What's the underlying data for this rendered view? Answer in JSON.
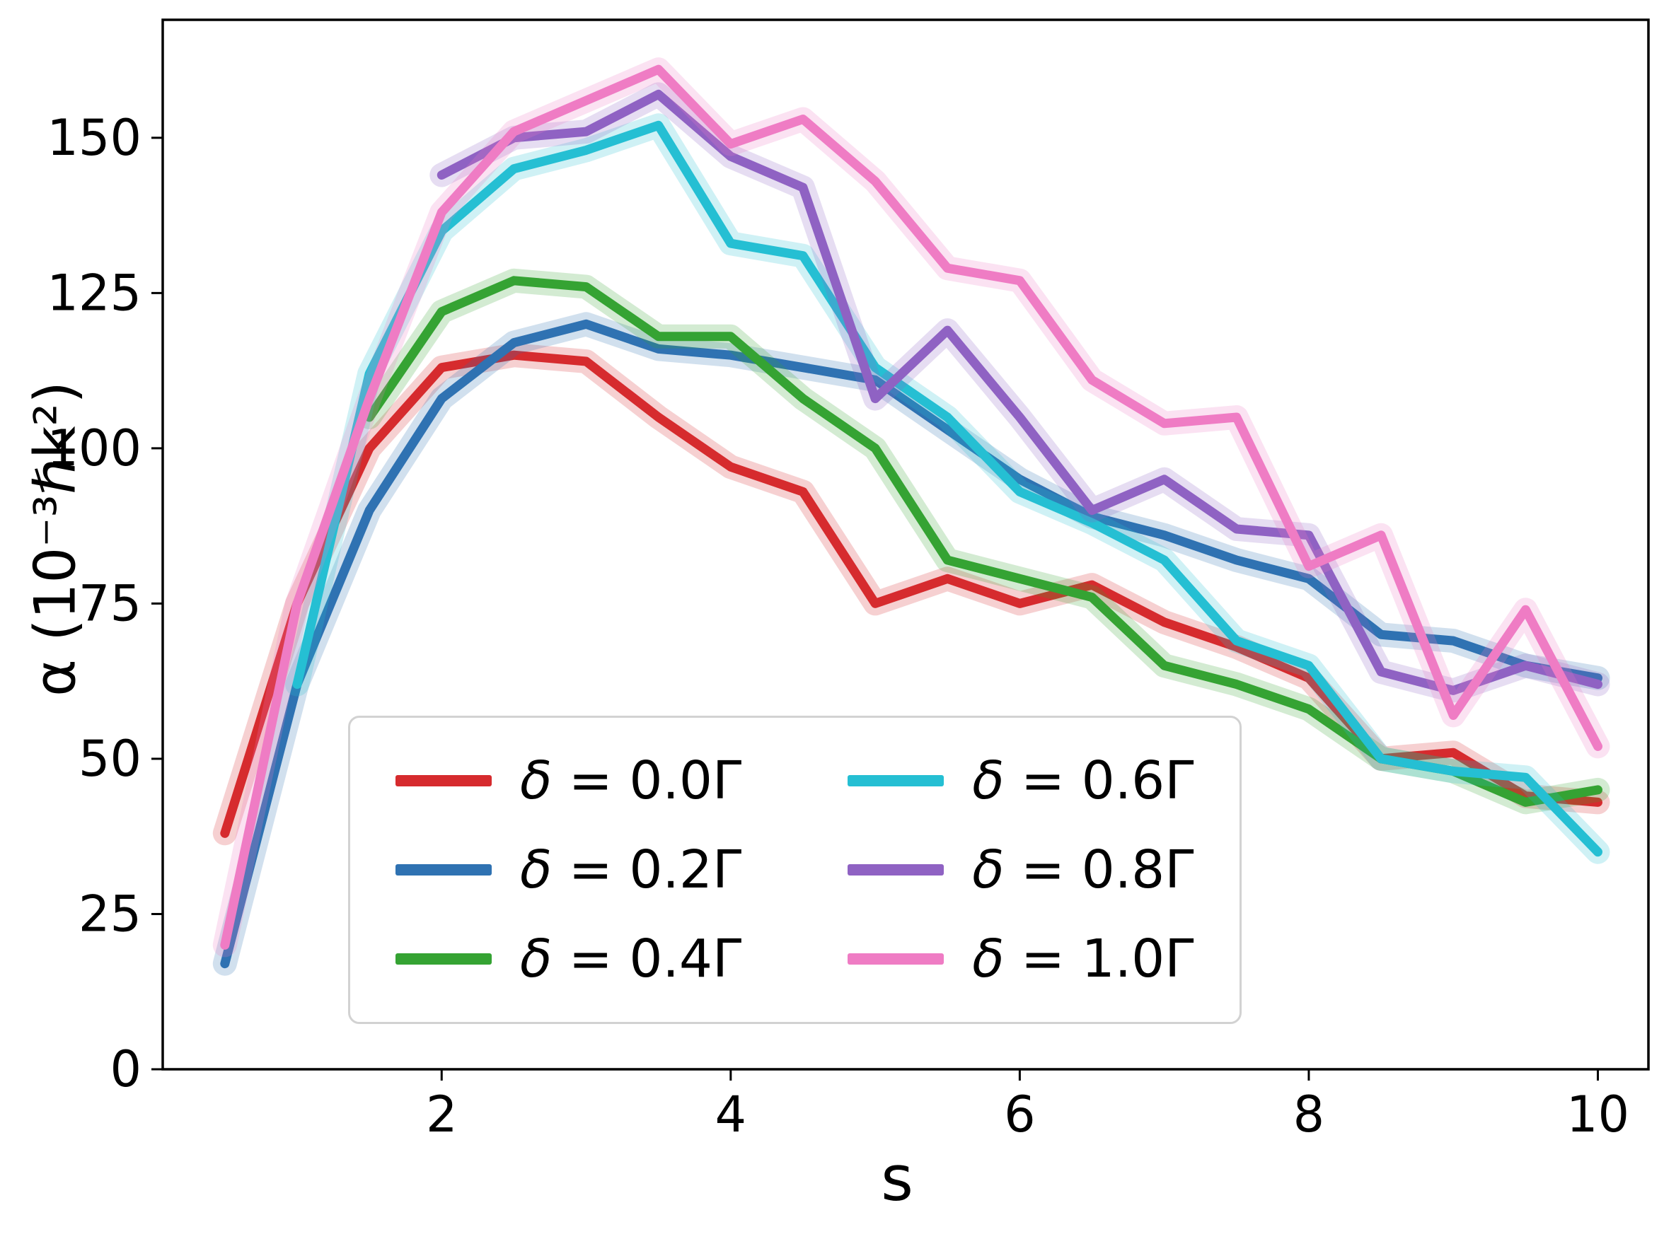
{
  "chart_data": {
    "type": "line",
    "title": "",
    "xlabel": "s",
    "ylabel": "α (10⁻³ℏk²)",
    "xlim": [
      0.07,
      10.35
    ],
    "ylim": [
      0,
      169
    ],
    "xticks": [
      2,
      4,
      6,
      8,
      10
    ],
    "yticks": [
      0,
      25,
      50,
      75,
      100,
      125,
      150
    ],
    "grid": false,
    "error_band": true,
    "legend": {
      "location": "lower left",
      "ncol": 2
    },
    "x": [
      0.5,
      1,
      1.5,
      2,
      2.5,
      3,
      3.5,
      4,
      4.5,
      5,
      5.5,
      6,
      6.5,
      7,
      7.5,
      8,
      8.5,
      9,
      9.5,
      10
    ],
    "series": [
      {
        "name": "δ = 0.0Γ",
        "color": "#d62b2e",
        "values": [
          38,
          75,
          100,
          113,
          115,
          114,
          105,
          97,
          93,
          75,
          79,
          75,
          78,
          72,
          68,
          63,
          50,
          51,
          44,
          43
        ]
      },
      {
        "name": "δ = 0.2Γ",
        "color": "#2f72b2",
        "values": [
          17,
          62,
          90,
          108,
          117,
          120,
          116,
          115,
          113,
          111,
          103,
          95,
          89,
          86,
          82,
          79,
          70,
          69,
          65,
          63
        ]
      },
      {
        "name": "δ = 0.4Γ",
        "color": "#35a333",
        "values": [
          null,
          null,
          105,
          122,
          127,
          126,
          118,
          118,
          108,
          100,
          82,
          79,
          76,
          65,
          62,
          58,
          50,
          48,
          43,
          45
        ]
      },
      {
        "name": "δ = 0.6Γ",
        "color": "#25bfd3",
        "values": [
          null,
          62,
          112,
          135,
          145,
          148,
          152,
          133,
          131,
          113,
          105,
          93,
          88,
          82,
          69,
          65,
          50,
          48,
          47,
          35
        ]
      },
      {
        "name": "δ = 0.8Γ",
        "color": "#8f62c3",
        "values": [
          null,
          null,
          null,
          144,
          150,
          151,
          157,
          147,
          142,
          108,
          119,
          105,
          90,
          95,
          87,
          86,
          64,
          61,
          65,
          62
        ]
      },
      {
        "name": "δ = 1.0Γ",
        "color": "#ef7cc4",
        "values": [
          20,
          75,
          108,
          138,
          151,
          156,
          161,
          149,
          153,
          143,
          129,
          127,
          111,
          104,
          105,
          81,
          86,
          57,
          74,
          52
        ]
      }
    ]
  }
}
